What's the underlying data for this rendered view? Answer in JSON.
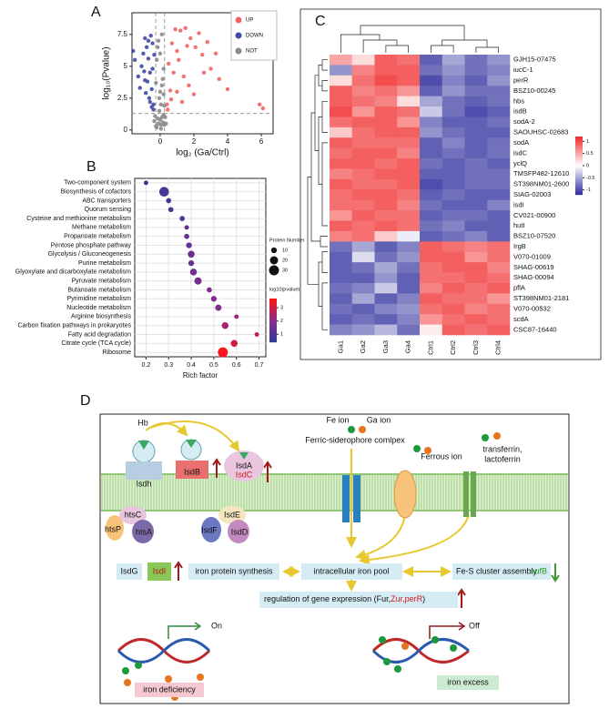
{
  "chart_data": [
    {
      "type": "scatter",
      "label": "A",
      "x_label": "log₂ (Ga/Ctrl)",
      "y_label": "log₁₀(Pvalue)",
      "xlim": [
        -1.67,
        6.7
      ],
      "xticks": [
        0,
        2,
        4,
        6
      ],
      "ylim": [
        -0.3,
        9.2
      ],
      "yticks": [
        0,
        2.5,
        5,
        7.5
      ],
      "vlines": [
        -0.26,
        0.26
      ],
      "hline": 1.3,
      "legend": "top-right",
      "series": [
        {
          "name": "UP",
          "color": "#f06464",
          "x": [
            0.4,
            0.6,
            0.8,
            1.0,
            1.2,
            1.5,
            1.8,
            2.1,
            2.5,
            3.0,
            3.5,
            4.0,
            0.5,
            0.7,
            0.9,
            1.1,
            1.4,
            1.7,
            2.0,
            2.3,
            2.8,
            3.3,
            0.45,
            0.65,
            1.0,
            1.3,
            1.6,
            5.9,
            6.1,
            2.6
          ],
          "values": [
            2.0,
            3.1,
            4.5,
            6.2,
            7.8,
            8.0,
            7.2,
            6.5,
            5.9,
            4.8,
            4.0,
            3.2,
            5.2,
            6.8,
            7.9,
            5.5,
            4.2,
            3.5,
            2.8,
            7.6,
            6.9,
            6.0,
            1.6,
            2.4,
            3.0,
            2.2,
            6.6,
            2.0,
            1.7,
            4.5
          ]
        },
        {
          "name": "DOWN",
          "color": "#3f4aa6",
          "x": [
            -0.4,
            -0.5,
            -0.6,
            -0.7,
            -0.8,
            -0.9,
            -1.0,
            -1.1,
            -1.3,
            -1.5,
            -0.45,
            -0.55,
            -0.65,
            -0.75,
            -0.85,
            -0.95,
            -1.2,
            -0.4,
            -0.5,
            -0.6,
            -0.7,
            -0.9,
            -0.35,
            -0.45,
            -1.6
          ],
          "values": [
            2.0,
            3.2,
            4.5,
            5.6,
            6.5,
            7.2,
            6.0,
            5.0,
            4.2,
            5.5,
            6.8,
            7.4,
            2.5,
            3.8,
            2.9,
            4.6,
            3.3,
            1.6,
            1.8,
            2.2,
            7.0,
            3.9,
            5.9,
            4.8,
            6.2
          ]
        },
        {
          "name": "NOT",
          "color": "#8a8a8a",
          "x": [
            -0.2,
            -0.1,
            0,
            0.1,
            0.2,
            -0.25,
            -0.15,
            0.05,
            0.15,
            0.25,
            -0.3,
            -0.05,
            0.1,
            0.2,
            0,
            -0.1,
            0.3,
            -0.2,
            0.05,
            0.15,
            -0.35,
            0.35,
            0,
            -0.05,
            0.1,
            -0.15,
            0.2,
            0.25,
            -0.25,
            0.05
          ],
          "values": [
            0.2,
            0.5,
            0.8,
            1.0,
            1.2,
            0.3,
            0.9,
            0.1,
            0.6,
            0.4,
            1.1,
            2.5,
            3.5,
            4.8,
            6.0,
            7.0,
            1.0,
            5.5,
            2.0,
            4.0,
            0.7,
            0.5,
            3.0,
            1.5,
            7.5,
            6.5,
            2.8,
            1.9,
            3.7,
            0.4
          ]
        }
      ]
    },
    {
      "type": "bubble",
      "label": "B",
      "x_label": "Rich factor",
      "grid": true,
      "xlim": [
        0.15,
        0.73
      ],
      "xticks": [
        0.2,
        0.3,
        0.4,
        0.5,
        0.6,
        0.7
      ],
      "categories": [
        "Two-component system",
        "Biosynthesis of cofactors",
        "ABC transporters",
        "Quorum sensing",
        "Cysteine and methionine metabolism",
        "Methane metabolism",
        "Propanoate metabolism",
        "Pentose phosphate pathway",
        "Glycolysis / Gluconeogenesis",
        "Purine metabolism",
        "Glyoxylate and dicarboxylate metabolism",
        "Pyruvate metabolism",
        "Butanoate metabolism",
        "Pyrimidine metabolism",
        "Nucleotide metabolism",
        "Arginine biosynthesis",
        "Carbon fixation pathways in prokaryotes",
        "Fatty acid degradation",
        "Citrate cycle (TCA cycle)",
        "Ribosome"
      ],
      "values": [
        0.2,
        0.28,
        0.3,
        0.31,
        0.36,
        0.38,
        0.38,
        0.39,
        0.4,
        0.4,
        0.41,
        0.43,
        0.48,
        0.5,
        0.52,
        0.6,
        0.55,
        0.69,
        0.59,
        0.54
      ],
      "sizes": [
        6,
        28,
        8,
        8,
        8,
        6,
        8,
        10,
        14,
        10,
        14,
        16,
        8,
        10,
        12,
        6,
        14,
        6,
        14,
        30
      ],
      "color_values": [
        0.6,
        0.9,
        0.9,
        1.0,
        1.1,
        1.2,
        1.3,
        1.3,
        1.5,
        1.4,
        1.6,
        1.7,
        1.7,
        1.9,
        2.0,
        2.3,
        2.5,
        2.8,
        3.1,
        3.6
      ],
      "size_legend": {
        "title": "Protein Number",
        "ticks": [
          10,
          20,
          30
        ]
      },
      "color_legend": {
        "title": "log10(pvalue)",
        "lim": [
          0.4,
          3.7
        ],
        "ticks": [
          1,
          2,
          3
        ],
        "colors": [
          "#2d3a98",
          "#8a2b8c",
          "#ff1414"
        ]
      }
    },
    {
      "type": "heatmap",
      "label": "C",
      "columns": [
        "Ga1",
        "Ga2",
        "Ga3",
        "Ga4",
        "Ctrl1",
        "Ctrl2",
        "Ctrl3",
        "Ctrl4"
      ],
      "rows": [
        "GJH15-07475",
        "iucC-1",
        "perR",
        "BSZ10-00245",
        "hbs",
        "isdB",
        "sodA-2",
        "SAOUHSC-02683",
        "sodA",
        "isdC",
        "yclQ",
        "TMSFP482-12610",
        "ST398NM01-2600",
        "SIAG-02003",
        "isdI",
        "CV021-00900",
        "hutI",
        "BSZ10-07520",
        "IrgB",
        "V070-01009",
        "SHAG-00619",
        "SHAG-00094",
        "pflA",
        "ST398NM01-2181",
        "V070-00532",
        "scdA",
        "CSC87-16440"
      ],
      "values": [
        [
          0.5,
          0.2,
          0.9,
          0.8,
          -0.9,
          -0.5,
          -0.8,
          -0.6
        ],
        [
          -0.6,
          0.7,
          0.9,
          0.9,
          -0.8,
          -0.6,
          -0.8,
          -0.7
        ],
        [
          0.2,
          0.8,
          1.0,
          0.9,
          -1.0,
          -0.7,
          -0.9,
          -0.6
        ],
        [
          0.9,
          0.7,
          0.8,
          0.6,
          -0.9,
          -0.6,
          -0.8,
          -0.8
        ],
        [
          0.9,
          0.8,
          0.7,
          0.2,
          -0.5,
          -0.8,
          -0.9,
          -0.8
        ],
        [
          1.0,
          0.6,
          0.9,
          0.8,
          -0.3,
          -0.8,
          -1.0,
          -0.9
        ],
        [
          0.8,
          0.9,
          0.9,
          0.6,
          -0.7,
          -0.9,
          -0.9,
          -0.8
        ],
        [
          0.3,
          0.8,
          0.9,
          0.9,
          -0.6,
          -0.8,
          -0.9,
          -0.9
        ],
        [
          0.9,
          0.8,
          0.8,
          0.8,
          -0.9,
          -0.7,
          -0.9,
          -0.8
        ],
        [
          0.8,
          0.9,
          0.9,
          0.7,
          -0.9,
          -0.8,
          -0.9,
          -0.8
        ],
        [
          0.9,
          0.9,
          0.8,
          0.9,
          -0.8,
          -0.9,
          -0.8,
          -0.9
        ],
        [
          0.7,
          0.8,
          0.9,
          0.9,
          -0.9,
          -0.9,
          -0.8,
          -0.8
        ],
        [
          0.9,
          0.8,
          0.8,
          0.9,
          -1.0,
          -0.9,
          -0.8,
          -0.8
        ],
        [
          0.8,
          0.9,
          0.9,
          0.8,
          -0.9,
          -0.8,
          -0.9,
          -0.9
        ],
        [
          0.8,
          0.8,
          0.9,
          0.7,
          -0.8,
          -0.9,
          -0.9,
          -0.7
        ],
        [
          0.6,
          0.9,
          0.8,
          0.8,
          -0.9,
          -0.8,
          -0.8,
          -0.9
        ],
        [
          0.9,
          0.8,
          0.9,
          0.8,
          -0.8,
          -0.7,
          -0.9,
          -0.9
        ],
        [
          0.7,
          0.8,
          0.3,
          -0.1,
          -0.9,
          -0.8,
          -0.7,
          -0.9
        ],
        [
          -0.8,
          -0.5,
          -0.9,
          -0.7,
          0.9,
          0.8,
          0.7,
          0.8
        ],
        [
          -0.9,
          -0.2,
          -0.8,
          -0.6,
          0.9,
          0.9,
          0.6,
          0.8
        ],
        [
          -0.9,
          -0.8,
          -0.5,
          -0.8,
          0.8,
          0.9,
          0.9,
          0.7
        ],
        [
          -0.9,
          -0.9,
          -0.6,
          -0.9,
          0.8,
          0.8,
          0.9,
          0.8
        ],
        [
          -0.8,
          -0.7,
          -0.3,
          -0.9,
          0.7,
          0.9,
          0.8,
          0.9
        ],
        [
          -0.9,
          -0.5,
          -0.9,
          -0.7,
          0.9,
          0.8,
          0.8,
          0.6
        ],
        [
          -0.8,
          -0.9,
          -0.7,
          -0.6,
          0.8,
          0.9,
          0.7,
          0.8
        ],
        [
          -0.9,
          -0.8,
          -0.9,
          -0.7,
          0.6,
          0.8,
          0.9,
          0.8
        ],
        [
          -0.7,
          -0.6,
          -0.4,
          -0.8,
          0.1,
          0.9,
          0.8,
          0.9
        ]
      ],
      "colorbar": {
        "lim": [
          -1.2,
          1.2
        ],
        "ticks": [
          1,
          0.5,
          0,
          -0.5,
          -1
        ],
        "colors": [
          "#2b2b9b",
          "#ffffff",
          "#f02a2a"
        ]
      }
    }
  ],
  "diagram": {
    "label": "D",
    "hb": "Hb",
    "isdh": "Isdh",
    "isdb": "IsdB",
    "isda": "IsdA",
    "isdc": "IsdC",
    "fe_ion": "Fe ion",
    "ga_ion": "Ga ion",
    "siderophore": "Ferric-siderophore comlpex",
    "ferrous": "Ferrous ion",
    "transferrin": "transferrin,",
    "lactoferrin": "lactoferrin",
    "htsc": "htsC",
    "htsp": "htsP",
    "htsa": "htsA",
    "isde": "IsdE",
    "isdf": "IsdF",
    "isdd": "IsdD",
    "isdg": "IsdG",
    "isdi": "IsdI",
    "protein_synthesis": "iron protein synthesis",
    "iron_pool": "intracellular iron pool",
    "fes": "Fe-S cluster assembly",
    "sufb": "sufB",
    "regulation": "regulation of gene expression (Fur,",
    "regulators": "Zur,perR",
    "close": ")",
    "on": "On",
    "off": "Off",
    "deficiency": "iron deficiency",
    "excess": "iron excess"
  }
}
